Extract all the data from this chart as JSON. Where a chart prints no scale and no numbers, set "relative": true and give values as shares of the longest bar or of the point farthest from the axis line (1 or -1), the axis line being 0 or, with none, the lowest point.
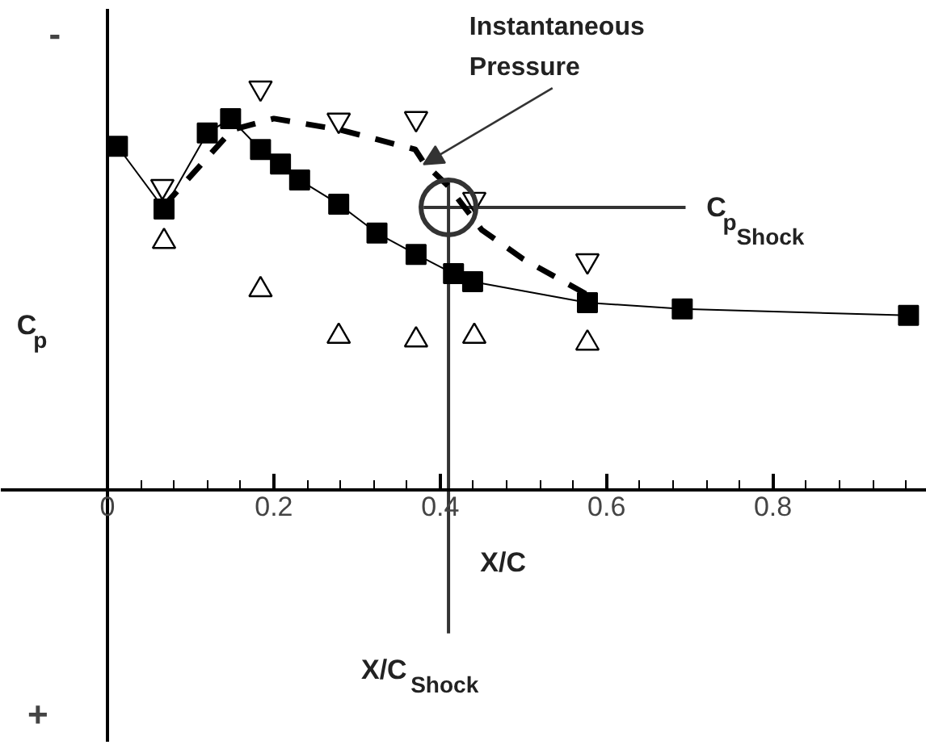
{
  "chart_data": {
    "type": "line",
    "relative": true,
    "xlabel": "X/C",
    "ylabel": "C$_{p}$",
    "xlim": [
      0,
      0.985
    ],
    "xticks": [
      0,
      0.2,
      0.4,
      0.6,
      0.8
    ],
    "grid": false,
    "series": [
      {
        "color": "#000000",
        "marker": "square",
        "line_style": "solid",
        "x": [
          0.012,
          0.068,
          0.12,
          0.148,
          0.184,
          0.208,
          0.231,
          0.278,
          0.324,
          0.371,
          0.416,
          0.439,
          0.577,
          0.691,
          0.963
        ],
        "values": [
          0.855,
          0.699,
          0.888,
          0.924,
          0.847,
          0.811,
          0.771,
          0.711,
          0.639,
          0.586,
          0.538,
          0.518,
          0.466,
          0.45,
          0.434
        ]
      },
      {
        "color": "#000000",
        "marker": "none",
        "line_style": "dashed",
        "x": [
          0.068,
          0.15,
          0.2,
          0.28,
          0.37,
          0.38,
          0.41,
          0.45,
          0.5,
          0.58
        ],
        "values": [
          0.707,
          0.896,
          0.924,
          0.896,
          0.847,
          0.815,
          0.755,
          0.647,
          0.574,
          0.482
        ]
      },
      {
        "type": "scatter",
        "color": "#000000",
        "marker": "triangle_down",
        "x": [
          0.066,
          0.184,
          0.278,
          0.371,
          0.441,
          0.577
        ],
        "values": [
          0.755,
          1,
          0.92,
          0.924,
          0.723,
          0.57
        ]
      },
      {
        "type": "scatter",
        "color": "#000000",
        "marker": "triangle",
        "x": [
          0.068,
          0.184,
          0.278,
          0.371,
          0.441,
          0.577
        ],
        "values": [
          0.618,
          0.498,
          0.382,
          0.373,
          0.382,
          0.365
        ]
      },
      {
        "type": "scatter",
        "color": "#333333",
        "marker": "circle",
        "x": [
          0.41
        ],
        "values": [
          0.703
        ]
      }
    ],
    "ref_lines": [
      {
        "axis": "x",
        "value": 0.41,
        "label": "X/C$_{Shock}$",
        "color": "#333333"
      },
      {
        "axis": "y",
        "value": 0.703,
        "label": "C$_{p}$$_{Shock}$",
        "color": "#333333"
      }
    ],
    "annotations": [
      {
        "text": "Instantaneous Pressure",
        "x": 0.375,
        "y": 0.8
      },
      "-",
      "+"
    ]
  }
}
